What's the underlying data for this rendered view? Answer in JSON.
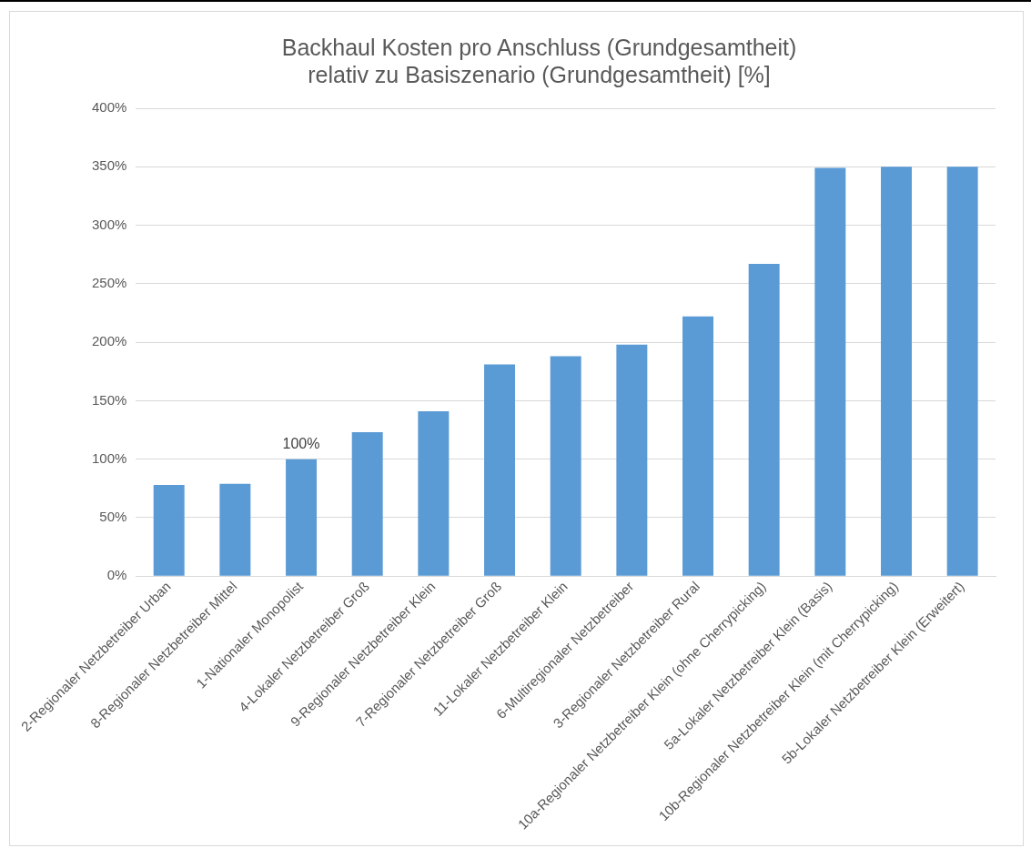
{
  "chart_data": {
    "type": "bar",
    "title": [
      "Backhaul Kosten pro Anschluss (Grundgesamtheit)",
      "relativ zu Basiszenario (Grundgesamtheit) [%]"
    ],
    "categories": [
      "2-Regionaler Netzbetreiber Urban",
      "8-Regionaler Netzbetreiber Mittel",
      "1-Nationaler Monopolist",
      "4-Lokaler Netzbetreiber Groß",
      "9-Regionaler Netzbetreiber Klein",
      "7-Regionaler Netzbetreiber Groß",
      "11-Lokaler Netzbetreiber Klein",
      "6-Multiregionaler Netzbetreiber",
      "3-Regionaler Netzbetreiber Rural",
      "10a-Regionaler Netzbetreiber Klein (ohne Cherrypicking)",
      "5a-Lokaler Netzbetreiber Klein (Basis)",
      "10b-Regionaler Netzbetreiber Klein (mit Cherrypicking)",
      "5b-Lokaler Netzbetreiber Klein (Erweitert)"
    ],
    "values": [
      78,
      79,
      100,
      123,
      141,
      181,
      188,
      198,
      222,
      267,
      349,
      350,
      350
    ],
    "value_labels": [
      null,
      null,
      "100%",
      null,
      null,
      null,
      null,
      null,
      null,
      null,
      null,
      null,
      null
    ],
    "color": "#5b9bd5",
    "ylim": [
      0,
      400
    ],
    "yticks": [
      {
        "value": 0,
        "label": "0%"
      },
      {
        "value": 50,
        "label": "50%"
      },
      {
        "value": 100,
        "label": "100%"
      },
      {
        "value": 150,
        "label": "150%"
      },
      {
        "value": 200,
        "label": "200%"
      },
      {
        "value": 250,
        "label": "250%"
      },
      {
        "value": 300,
        "label": "300%"
      },
      {
        "value": 350,
        "label": "350%"
      },
      {
        "value": 400,
        "label": "400%"
      }
    ],
    "grid": "y",
    "legend": false
  }
}
